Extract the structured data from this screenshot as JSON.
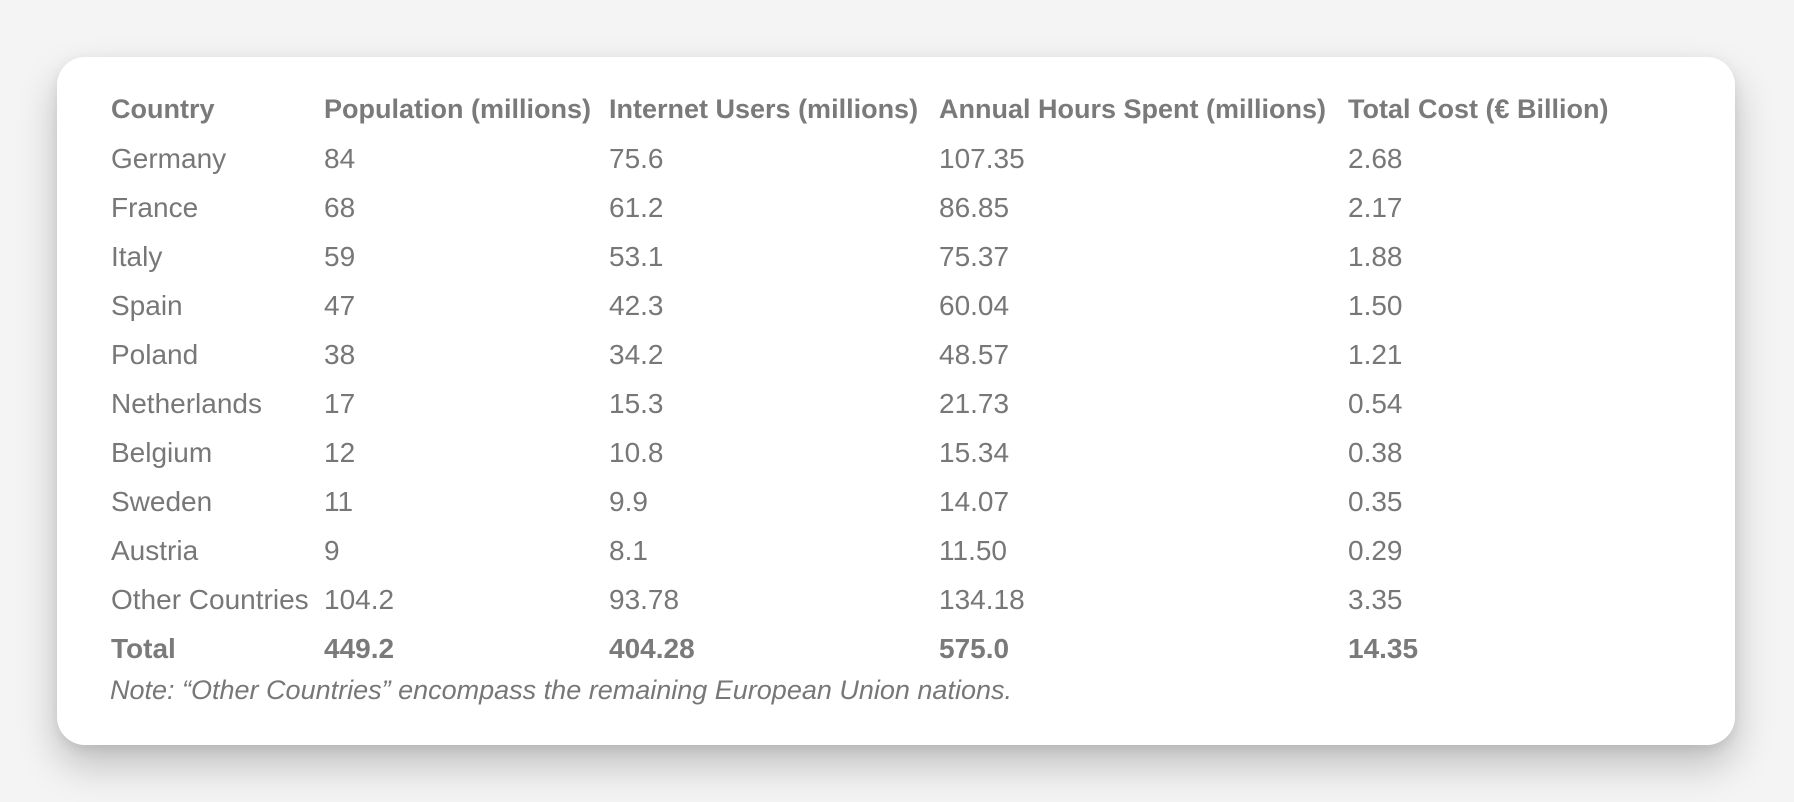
{
  "chart_data": {
    "type": "table",
    "columns": [
      "Country",
      "Population (millions)",
      "Internet Users (millions)",
      "Annual Hours Spent (millions)",
      "Total Cost (€ Billion)"
    ],
    "rows": [
      [
        "Germany",
        "84",
        "75.6",
        "107.35",
        "2.68"
      ],
      [
        "France",
        "68",
        "61.2",
        "86.85",
        "2.17"
      ],
      [
        "Italy",
        "59",
        "53.1",
        "75.37",
        "1.88"
      ],
      [
        "Spain",
        "47",
        "42.3",
        "60.04",
        "1.50"
      ],
      [
        "Poland",
        "38",
        "34.2",
        "48.57",
        "1.21"
      ],
      [
        "Netherlands",
        "17",
        "15.3",
        "21.73",
        "0.54"
      ],
      [
        "Belgium",
        "12",
        "10.8",
        "15.34",
        "0.38"
      ],
      [
        "Sweden",
        "11",
        "9.9",
        "14.07",
        "0.35"
      ],
      [
        "Austria",
        "9",
        "8.1",
        "11.50",
        "0.29"
      ],
      [
        "Other Countries",
        "104.2",
        "93.78",
        "134.18",
        "3.35"
      ]
    ],
    "total": [
      "Total",
      "449.2",
      "404.28",
      "575.0",
      "14.35"
    ],
    "note": "Note: “Other Countries” encompass the remaining European Union nations."
  }
}
